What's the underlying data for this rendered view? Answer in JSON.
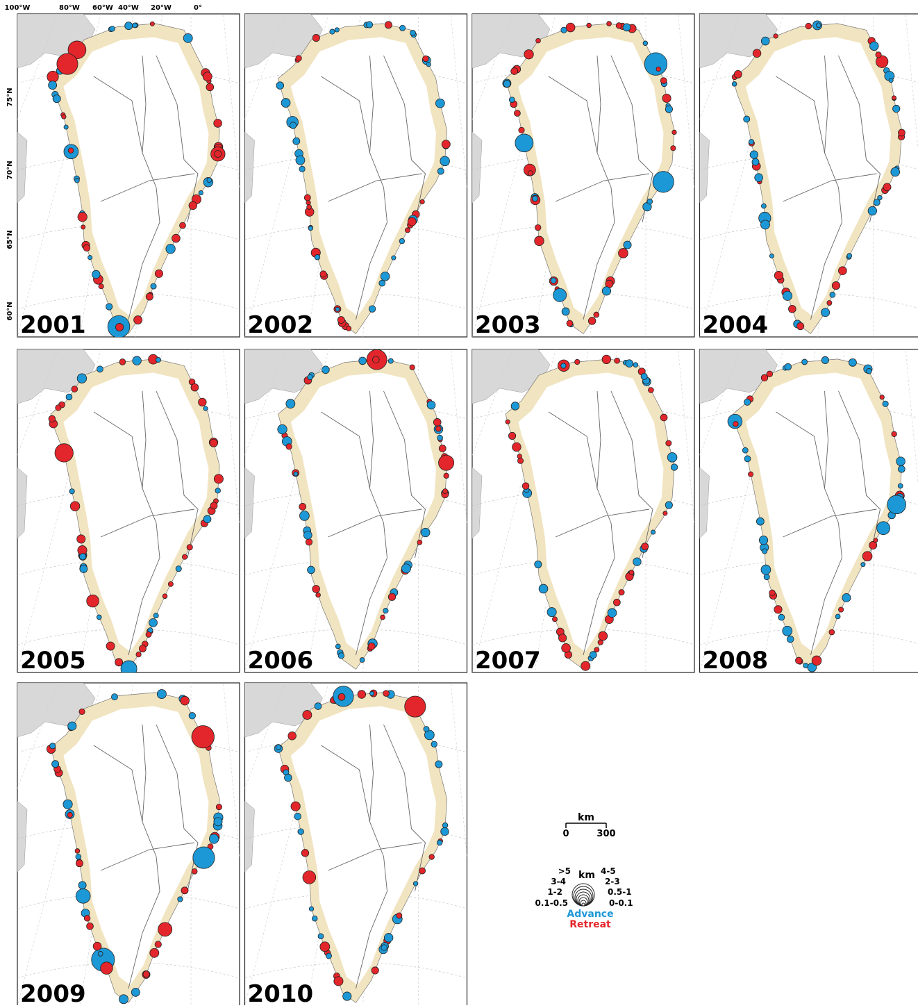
{
  "axes": {
    "longitudes": [
      "100°W",
      "80°W",
      "60°W",
      "40°W",
      "20°W",
      "0°"
    ],
    "latitudes": [
      "75°N",
      "70°N",
      "65°N",
      "60°N"
    ]
  },
  "panels": [
    {
      "year": 2001
    },
    {
      "year": 2002
    },
    {
      "year": 2003
    },
    {
      "year": 2004
    },
    {
      "year": 2005
    },
    {
      "year": 2006
    },
    {
      "year": 2007
    },
    {
      "year": 2008
    },
    {
      "year": 2009
    },
    {
      "year": 2010
    }
  ],
  "legend": {
    "scale": {
      "unit": "km",
      "min": 0,
      "max": 300
    },
    "size": {
      "unit": "km",
      "left": [
        ">5",
        "3-4",
        "1-2",
        "0.1-0.5"
      ],
      "right": [
        "4-5",
        "2-3",
        "0.5-1",
        "0-0.1"
      ]
    },
    "advance": {
      "label": "Advance",
      "color": "#1d98d6"
    },
    "retreat": {
      "label": "Retreat",
      "color": "#e3262b"
    }
  }
}
